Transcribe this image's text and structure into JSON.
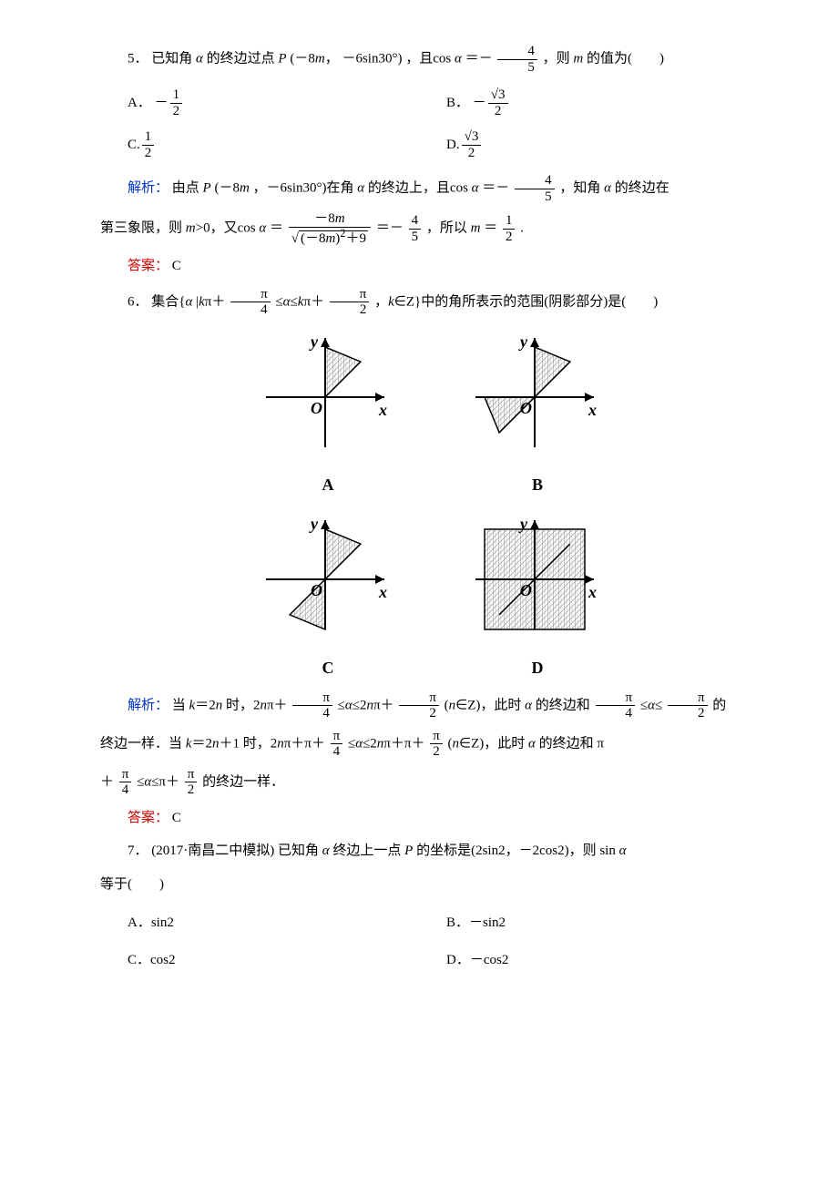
{
  "q5": {
    "number": "5．",
    "stem_pre": "已知角 ",
    "alpha": "α",
    "stem_mid1": " 的终边过点 ",
    "P": "P",
    "paren_open": "(",
    "neg8m": "－8",
    "m": "m",
    "comma": "，",
    "neg6sin30": "－6sin30°",
    "paren_close": ")",
    "stem_mid2": "，且cos ",
    "eq": "＝－",
    "frac": {
      "num": "4",
      "den": "5"
    },
    "stem_mid3": "，则 ",
    "stem_end": " 的值为(　　)",
    "options": {
      "A": {
        "label": "A．",
        "sign": "－",
        "num": "1",
        "den": "2"
      },
      "B": {
        "label": "B．",
        "sign": "－",
        "num": "√3",
        "den": "2"
      },
      "C": {
        "label": "C.",
        "sign": "",
        "num": "1",
        "den": "2"
      },
      "D": {
        "label": "D.",
        "sign": "",
        "num": "√3",
        "den": "2"
      }
    },
    "analysis": {
      "label": "解析：",
      "t1": "由点 ",
      "t2": "(－8",
      "t3": "，－6sin30°)在角 ",
      "t4": " 的终边上，且cos ",
      "t5": "＝－",
      "f1": {
        "num": "4",
        "den": "5"
      },
      "t6": "，知角 ",
      "t7": " 的终边在",
      "line2a": "第三象限，则 ",
      "m_gt0": ">0，又cos ",
      "eq2": "＝",
      "bigfrac": {
        "num_pre": "－8",
        "den_pre": "(－8",
        "den_mid": ")",
        "den_sup": "2",
        "den_post": "＋9"
      },
      "eq3": "＝－",
      "f2": {
        "num": "4",
        "den": "5"
      },
      "t8": "，所以 ",
      "eq4": "＝",
      "f3": {
        "num": "1",
        "den": "2"
      },
      "dot": "."
    },
    "answer": {
      "label": "答案：",
      "val": "C"
    }
  },
  "q6": {
    "number": "6．",
    "t1": "集合{",
    "t2": "|",
    "k": "k",
    "pi": "π＋",
    "f1": {
      "num": "π",
      "den": "4"
    },
    "le": "≤",
    "t3": "≤",
    "f2": {
      "num": "π",
      "den": "2"
    },
    "t4": "，",
    "kinZ": "∈Z}中的角所表示的范围(阴影部分)是(　　)",
    "diagrams": {
      "axis_color": "#000000",
      "hatch_color": "#808080",
      "arrow_size": 8,
      "labels": {
        "y": "y",
        "x": "x",
        "O": "O"
      },
      "options": [
        "A",
        "B",
        "C",
        "D"
      ],
      "A": {
        "regions": [
          {
            "q": 1,
            "from": 45,
            "to": 90
          }
        ]
      },
      "B": {
        "regions": [
          {
            "q": 1,
            "from": 45,
            "to": 90
          },
          {
            "q": 3,
            "from": 180,
            "to": 225
          }
        ]
      },
      "C": {
        "regions": [
          {
            "q": 1,
            "from": 45,
            "to": 90
          },
          {
            "q": 3,
            "from": 225,
            "to": 270
          }
        ]
      },
      "D": {
        "regions": [
          {
            "full_square": true
          }
        ],
        "lines": [
          45,
          225
        ]
      }
    },
    "analysis": {
      "label": "解析：",
      "t1": "当 ",
      "k2n": "＝2",
      "n": "n",
      "t2": " 时，2",
      "t3": "π＋",
      "f1": {
        "num": "π",
        "den": "4"
      },
      "le1": "≤",
      "le2": "≤2",
      "f2": {
        "num": "π",
        "den": "2"
      },
      "paren": "(",
      "inZ": "∈Z)，此时 ",
      "t4": " 的终边和",
      "f3": {
        "num": "π",
        "den": "4"
      },
      "le3": "≤",
      "le4": "≤",
      "f4": {
        "num": "π",
        "den": "2"
      },
      "t5": "的",
      "line2": "终边一样．当 ",
      "k2n1": "＝2",
      "plus1": "＋1 时，2",
      "t6": "π＋π＋",
      "le5": "≤",
      "le6": "≤2",
      "t7": "π＋π＋",
      "t8": "(",
      "t9": "∈Z)，此时 ",
      "t10": " 的终边和 π",
      "line3a": "＋",
      "le7": "≤",
      "le8": "≤π＋",
      "t11": "的终边一样．"
    },
    "answer": {
      "label": "答案：",
      "val": "C"
    }
  },
  "q7": {
    "number": "7．",
    "src": "(2017·南昌二中模拟)",
    "t1": "已知角 ",
    "t2": " 终边上一点 ",
    "P": "P",
    "t3": " 的坐标是(2sin2，－2cos2)，则 sin ",
    "line2": "等于(　　)",
    "options": {
      "A": {
        "label": "A．",
        "val": "sin2"
      },
      "B": {
        "label": "B．",
        "val": "－sin2"
      },
      "C": {
        "label": "C．",
        "val": "cos2"
      },
      "D": {
        "label": "D．",
        "val": "－cos2"
      }
    }
  }
}
